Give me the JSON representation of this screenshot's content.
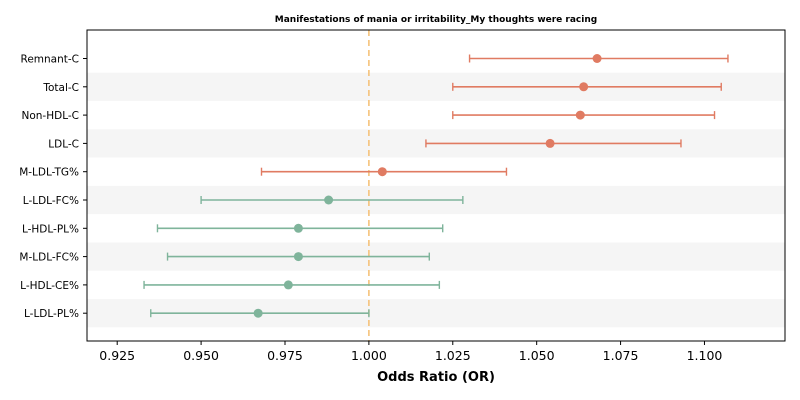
{
  "chart_data": {
    "type": "forest",
    "title": "Manifestations of mania or irritability_My thoughts were racing",
    "xlabel": "Odds Ratio (OR)",
    "ylabel": "",
    "xlim": [
      0.916,
      1.124
    ],
    "xticks": [
      0.925,
      0.95,
      0.975,
      1.0,
      1.025,
      1.05,
      1.075,
      1.1
    ],
    "xtick_labels": [
      "0.925",
      "0.950",
      "0.975",
      "1.000",
      "1.025",
      "1.050",
      "1.075",
      "1.100"
    ],
    "reference_line": 1.0,
    "grid": false,
    "alternating_row_bands": true,
    "colors": {
      "positive": "#E07B62",
      "negative": "#7FB49B",
      "reference": "#F5C27A",
      "band": "#F5F5F5"
    },
    "items": [
      {
        "label": "Remnant-C",
        "or": 1.068,
        "lower": 1.03,
        "upper": 1.107
      },
      {
        "label": "Total-C",
        "or": 1.064,
        "lower": 1.025,
        "upper": 1.105
      },
      {
        "label": "Non-HDL-C",
        "or": 1.063,
        "lower": 1.025,
        "upper": 1.103
      },
      {
        "label": "LDL-C",
        "or": 1.054,
        "lower": 1.017,
        "upper": 1.093
      },
      {
        "label": "M-LDL-TG%",
        "or": 1.004,
        "lower": 0.968,
        "upper": 1.041
      },
      {
        "label": "L-LDL-FC%",
        "or": 0.988,
        "lower": 0.95,
        "upper": 1.028
      },
      {
        "label": "L-HDL-PL%",
        "or": 0.979,
        "lower": 0.937,
        "upper": 1.022
      },
      {
        "label": "M-LDL-FC%",
        "or": 0.979,
        "lower": 0.94,
        "upper": 1.018
      },
      {
        "label": "L-HDL-CE%",
        "or": 0.976,
        "lower": 0.933,
        "upper": 1.021
      },
      {
        "label": "L-LDL-PL%",
        "or": 0.967,
        "lower": 0.935,
        "upper": 1.0
      }
    ]
  }
}
